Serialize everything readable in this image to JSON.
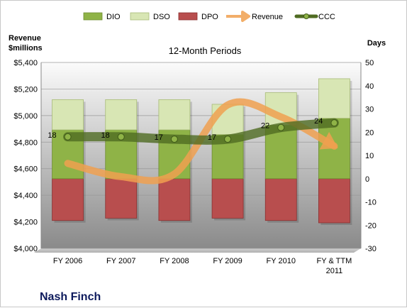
{
  "chart_data": {
    "type": "bar",
    "title": "12-Month Periods",
    "company": "Nash Finch",
    "left_axis": {
      "title_line1": "Revenue",
      "title_line2": "$millions",
      "range": [
        4000,
        5400
      ],
      "ticks": [
        "$4,000",
        "$4,200",
        "$4,400",
        "$4,600",
        "$4,800",
        "$5,000",
        "$5,200",
        "$5,400"
      ]
    },
    "right_axis": {
      "title": "Days",
      "range": [
        -30,
        50
      ],
      "ticks": [
        "-30",
        "-20",
        "-10",
        "0",
        "10",
        "20",
        "30",
        "40",
        "50"
      ]
    },
    "categories": [
      [
        "FY 2006"
      ],
      [
        "FY 2007"
      ],
      [
        "FY 2008"
      ],
      [
        "FY 2009"
      ],
      [
        "FY 2010"
      ],
      [
        "FY & TTM",
        "2011"
      ]
    ],
    "legend_position": "top",
    "series": [
      {
        "name": "DIO",
        "kind": "bar",
        "axis": "right",
        "color": "#8fb347",
        "values": [
          21,
          21,
          21,
          19,
          23,
          26
        ]
      },
      {
        "name": "DSO",
        "kind": "bar",
        "axis": "right",
        "color": "#d8e6b4",
        "values": [
          13,
          13,
          13,
          13,
          14,
          17
        ]
      },
      {
        "name": "DPO",
        "kind": "bar",
        "axis": "right",
        "color": "#b84e4e",
        "values": [
          18,
          17,
          18,
          17,
          18,
          19
        ]
      },
      {
        "name": "Revenue",
        "kind": "line",
        "axis": "left",
        "color": "#f0a050",
        "values": [
          4640,
          4540,
          4560,
          5080,
          4990,
          4770
        ]
      },
      {
        "name": "CCC",
        "kind": "line",
        "axis": "right",
        "color": "#4f6b22",
        "values": [
          18,
          18,
          17,
          17,
          22,
          24
        ],
        "labels": [
          "18",
          "18",
          "17",
          "17",
          "22",
          "24"
        ]
      }
    ],
    "grid": true
  }
}
